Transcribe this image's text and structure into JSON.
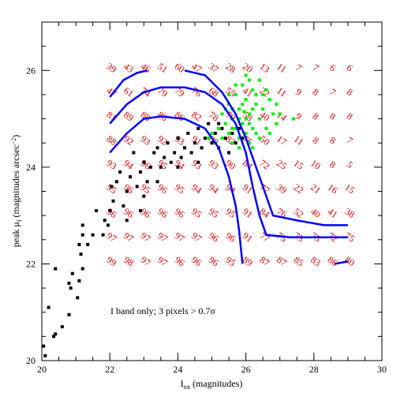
{
  "chart_data": {
    "type": "scatter",
    "x_label": {
      "main": "I",
      "sub": "tot",
      "rest": " (magnitudes)"
    },
    "y_label": {
      "main": "peak μ",
      "sub": "I",
      "rest": " (magnitudes arcsec",
      "sup": "−2",
      "close": ")"
    },
    "annotation": "I band only; 3 pixels > 0.7σ",
    "xlim": [
      20,
      30
    ],
    "ylim": [
      20,
      27
    ],
    "xticks": [
      20,
      22,
      24,
      26,
      28,
      30
    ],
    "yticks": [
      20,
      22,
      24,
      26
    ],
    "xminor": [
      20.5,
      21,
      21.5,
      22.5,
      23,
      23.5,
      24.5,
      25,
      25.5,
      26.5,
      27,
      27.5,
      28.5,
      29,
      29.5
    ],
    "yminor": [
      20.5,
      21,
      21.5,
      22.5,
      23,
      23.5,
      24.5,
      25,
      25.5,
      26.5
    ],
    "series": [
      {
        "color": "#000000",
        "x": [
          20.05,
          20.1,
          20.2,
          20.35,
          20.4,
          20.4,
          20.8,
          20.6,
          20.85,
          20.9,
          20.8,
          21.05,
          21.1,
          21.2,
          21.1,
          21.15,
          21.2,
          21.2,
          21.35,
          21.5,
          21.6,
          21.8,
          21.85,
          22.0,
          22.05,
          22.1,
          22.2,
          22.3,
          22.4,
          22.5,
          22.6,
          22.7,
          22.8,
          22.9,
          23.0,
          23.1,
          23.2,
          23.3,
          23.4,
          23.5,
          23.6,
          23.7,
          23.8,
          23.9,
          24.0,
          24.1,
          24.2,
          24.3,
          24.4,
          24.5,
          24.6,
          24.7,
          24.8,
          24.9,
          25.0,
          25.1,
          25.2,
          25.3,
          25.4,
          25.5,
          25.6,
          25.7,
          25.8,
          25.9,
          23.0,
          22.9,
          23.4,
          24.0,
          24.6,
          25.2,
          22.5,
          21.95
        ],
        "y": [
          20.3,
          20.1,
          21.1,
          20.5,
          20.55,
          21.9,
          20.95,
          20.7,
          21.5,
          21.8,
          21.6,
          21.3,
          21.65,
          21.9,
          22.4,
          22.2,
          22.6,
          22.8,
          22.4,
          22.6,
          23.1,
          22.6,
          22.9,
          23.1,
          23.6,
          23.3,
          23.7,
          23.9,
          23.2,
          23.5,
          23.8,
          24.3,
          23.6,
          23.9,
          24.1,
          23.7,
          24.0,
          24.3,
          24.4,
          24.0,
          24.2,
          24.5,
          24.1,
          24.3,
          24.6,
          24.2,
          24.4,
          24.7,
          24.3,
          24.5,
          24.8,
          24.4,
          24.6,
          24.9,
          24.5,
          24.7,
          24.4,
          24.8,
          24.6,
          24.3,
          24.7,
          24.5,
          24.8,
          24.6,
          23.4,
          23.1,
          23.7,
          24.0,
          24.1,
          24.9,
          22.9,
          22.8
        ]
      },
      {
        "color": "#00ee00",
        "x": [
          25.3,
          25.4,
          25.5,
          25.6,
          25.7,
          25.8,
          25.9,
          26.0,
          26.1,
          26.2,
          26.3,
          26.4,
          26.5,
          26.6,
          26.7,
          25.5,
          25.6,
          25.8,
          26.0,
          26.2,
          26.4,
          25.2,
          25.3,
          25.1,
          25.9,
          26.1,
          26.3,
          25.7,
          25.8,
          26.0,
          26.1,
          25.4,
          25.6,
          25.9,
          26.5,
          26.8,
          26.9,
          27.4,
          26.6,
          26.2,
          25.7,
          26.0,
          25.5,
          26.3,
          26.7,
          25.8,
          26.1,
          25.0,
          24.9,
          26.4,
          26.9,
          27.0,
          26.2,
          25.6,
          25.95
        ],
        "y": [
          25.1,
          24.9,
          25.3,
          25.0,
          25.5,
          25.2,
          24.9,
          25.4,
          25.1,
          25.6,
          25.3,
          25.0,
          25.2,
          24.8,
          25.4,
          24.7,
          24.5,
          24.6,
          24.7,
          24.8,
          24.6,
          24.8,
          24.6,
          24.5,
          25.7,
          25.8,
          25.5,
          24.8,
          25.0,
          25.0,
          24.9,
          25.2,
          25.2,
          25.3,
          25.5,
          25.1,
          24.9,
          25.0,
          25.6,
          25.2,
          25.7,
          25.9,
          25.5,
          24.7,
          24.7,
          24.4,
          24.5,
          24.7,
          24.6,
          25.8,
          25.3,
          25.1,
          24.4,
          24.8,
          25.15
        ]
      }
    ],
    "contours": {
      "color": "#0000ff",
      "lines": [
        {
          "x": [
            22,
            22.4,
            22.8,
            23.1
          ],
          "y": [
            25.45,
            25.8,
            25.95,
            26.0
          ]
        },
        {
          "x": [
            24.2,
            24.8,
            25.3,
            25.7,
            26.0,
            26.3,
            26.6,
            26.8,
            27.5,
            28.3,
            29
          ],
          "y": [
            26.0,
            25.9,
            25.55,
            25.1,
            24.6,
            24.0,
            23.4,
            23.0,
            22.9,
            22.8,
            22.8
          ]
        },
        {
          "x": [
            22,
            22.5,
            23,
            23.5,
            24.2,
            24.8,
            25.3,
            25.7,
            26,
            26.2,
            26.4,
            26.6,
            27.3,
            28,
            29
          ],
          "y": [
            24.9,
            25.3,
            25.55,
            25.65,
            25.65,
            25.55,
            25.3,
            24.9,
            24.3,
            23.6,
            23.0,
            22.6,
            22.55,
            22.55,
            22.55
          ]
        },
        {
          "x": [
            22,
            22.5,
            23,
            23.5,
            24.2,
            24.8,
            25.2,
            25.5,
            25.7,
            25.8,
            25.9
          ],
          "y": [
            24.3,
            24.7,
            25.0,
            25.05,
            25.0,
            24.8,
            24.4,
            23.8,
            23.2,
            22.7,
            22.0
          ]
        },
        {
          "x": [
            28.6,
            29
          ],
          "y": [
            22.0,
            22.05
          ]
        }
      ]
    },
    "grid_labels": {
      "color": "#dd0000",
      "x": [
        22,
        22.5,
        23,
        23.5,
        24,
        24.5,
        25,
        25.5,
        26,
        26.5,
        27,
        27.5,
        28,
        28.5,
        29
      ],
      "y": [
        26,
        25.5,
        25,
        24.5,
        24,
        23.5,
        23,
        22.5,
        22
      ],
      "values": [
        [
          39,
          43,
          46,
          51,
          60,
          47,
          37,
          28,
          20,
          13,
          11,
          7,
          7,
          6,
          6
        ],
        [
          47,
          61,
          74,
          79,
          79,
          76,
          68,
          55,
          41,
          22,
          11,
          9,
          8,
          7,
          8
        ],
        [
          81,
          89,
          88,
          88,
          86,
          82,
          78,
          70,
          58,
          40,
          14,
          9,
          8,
          8,
          8
        ],
        [
          88,
          92,
          93,
          92,
          93,
          91,
          89,
          82,
          76,
          50,
          17,
          11,
          8,
          8,
          7
        ],
        [
          93,
          94,
          96,
          95,
          94,
          93,
          93,
          90,
          84,
          72,
          25,
          15,
          10,
          8,
          5
        ],
        [
          95,
          96,
          95,
          96,
          95,
          94,
          94,
          94,
          91,
          77,
          39,
          22,
          21,
          16,
          15
        ],
        [
          96,
          96,
          96,
          96,
          96,
          95,
          95,
          95,
          91,
          84,
          76,
          52,
          40,
          41,
          38
        ],
        [
          97,
          97,
          97,
          97,
          97,
          97,
          96,
          96,
          91,
          77,
          75,
          73,
          75,
          72,
          75
        ],
        [
          99,
          98,
          97,
          97,
          96,
          96,
          96,
          95,
          89,
          87,
          87,
          85,
          83,
          86,
          80
        ]
      ]
    }
  }
}
